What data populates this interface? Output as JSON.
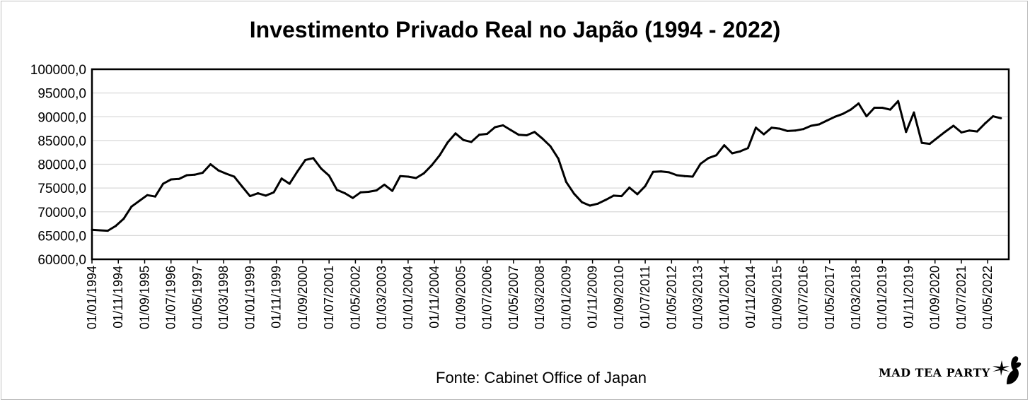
{
  "chart_data": {
    "type": "line",
    "title": "Investimento Privado Real no Japão (1994 - 2022)",
    "source": "Fonte: Cabinet Office of Japan",
    "xlabel": "",
    "ylabel": "",
    "ylim": [
      60000,
      100000
    ],
    "grid": true,
    "y_ticks": [
      "60000,0",
      "65000,0",
      "70000,0",
      "75000,0",
      "80000,0",
      "85000,0",
      "90000,0",
      "95000,0",
      "100000,0"
    ],
    "x_tick_labels": [
      "01/01/1994",
      "01/11/1994",
      "01/09/1995",
      "01/07/1996",
      "01/05/1997",
      "01/03/1998",
      "01/01/1999",
      "01/11/1999",
      "01/09/2000",
      "01/07/2001",
      "01/05/2002",
      "01/03/2003",
      "01/01/2004",
      "01/11/2004",
      "01/09/2005",
      "01/07/2006",
      "01/05/2007",
      "01/03/2008",
      "01/01/2009",
      "01/11/2009",
      "01/09/2010",
      "01/07/2011",
      "01/05/2012",
      "01/03/2013",
      "01/01/2014",
      "01/11/2014",
      "01/09/2015",
      "01/07/2016",
      "01/05/2017",
      "01/03/2018",
      "01/01/2019",
      "01/11/2019",
      "01/09/2020",
      "01/07/2021",
      "01/05/2022"
    ],
    "series": [
      {
        "name": "Investimento Privado Real",
        "color": "#000000",
        "values": [
          66200,
          66100,
          66000,
          67000,
          68500,
          71100,
          72300,
          73500,
          73200,
          75900,
          76800,
          76900,
          77700,
          77800,
          78200,
          80000,
          78700,
          78000,
          77400,
          75300,
          73300,
          73900,
          73400,
          74100,
          77000,
          75900,
          78500,
          80900,
          81300,
          79100,
          77600,
          74600,
          73900,
          72900,
          74100,
          74200,
          74500,
          75700,
          74400,
          77500,
          77400,
          77100,
          78100,
          79800,
          81900,
          84600,
          86500,
          85100,
          84700,
          86200,
          86400,
          87800,
          88200,
          87200,
          86200,
          86100,
          86800,
          85400,
          83800,
          81200,
          76300,
          73800,
          72000,
          71300,
          71700,
          72500,
          73400,
          73300,
          75100,
          73700,
          75400,
          78400,
          78500,
          78300,
          77700,
          77500,
          77400,
          80100,
          81300,
          81900,
          84000,
          82300,
          82700,
          83400,
          87700,
          86300,
          87700,
          87500,
          87000,
          87100,
          87400,
          88100,
          88400,
          89200,
          90000,
          90600,
          91500,
          92800,
          90100,
          91900,
          91900,
          91500,
          93300,
          86800,
          90900,
          84500,
          84300,
          85600,
          86900,
          88100,
          86700,
          87100,
          86900,
          88600,
          90100,
          89700
        ]
      }
    ]
  },
  "branding": {
    "text": "MAD TEA PARTY",
    "mark_icon": "rabbit-silhouette-icon"
  }
}
